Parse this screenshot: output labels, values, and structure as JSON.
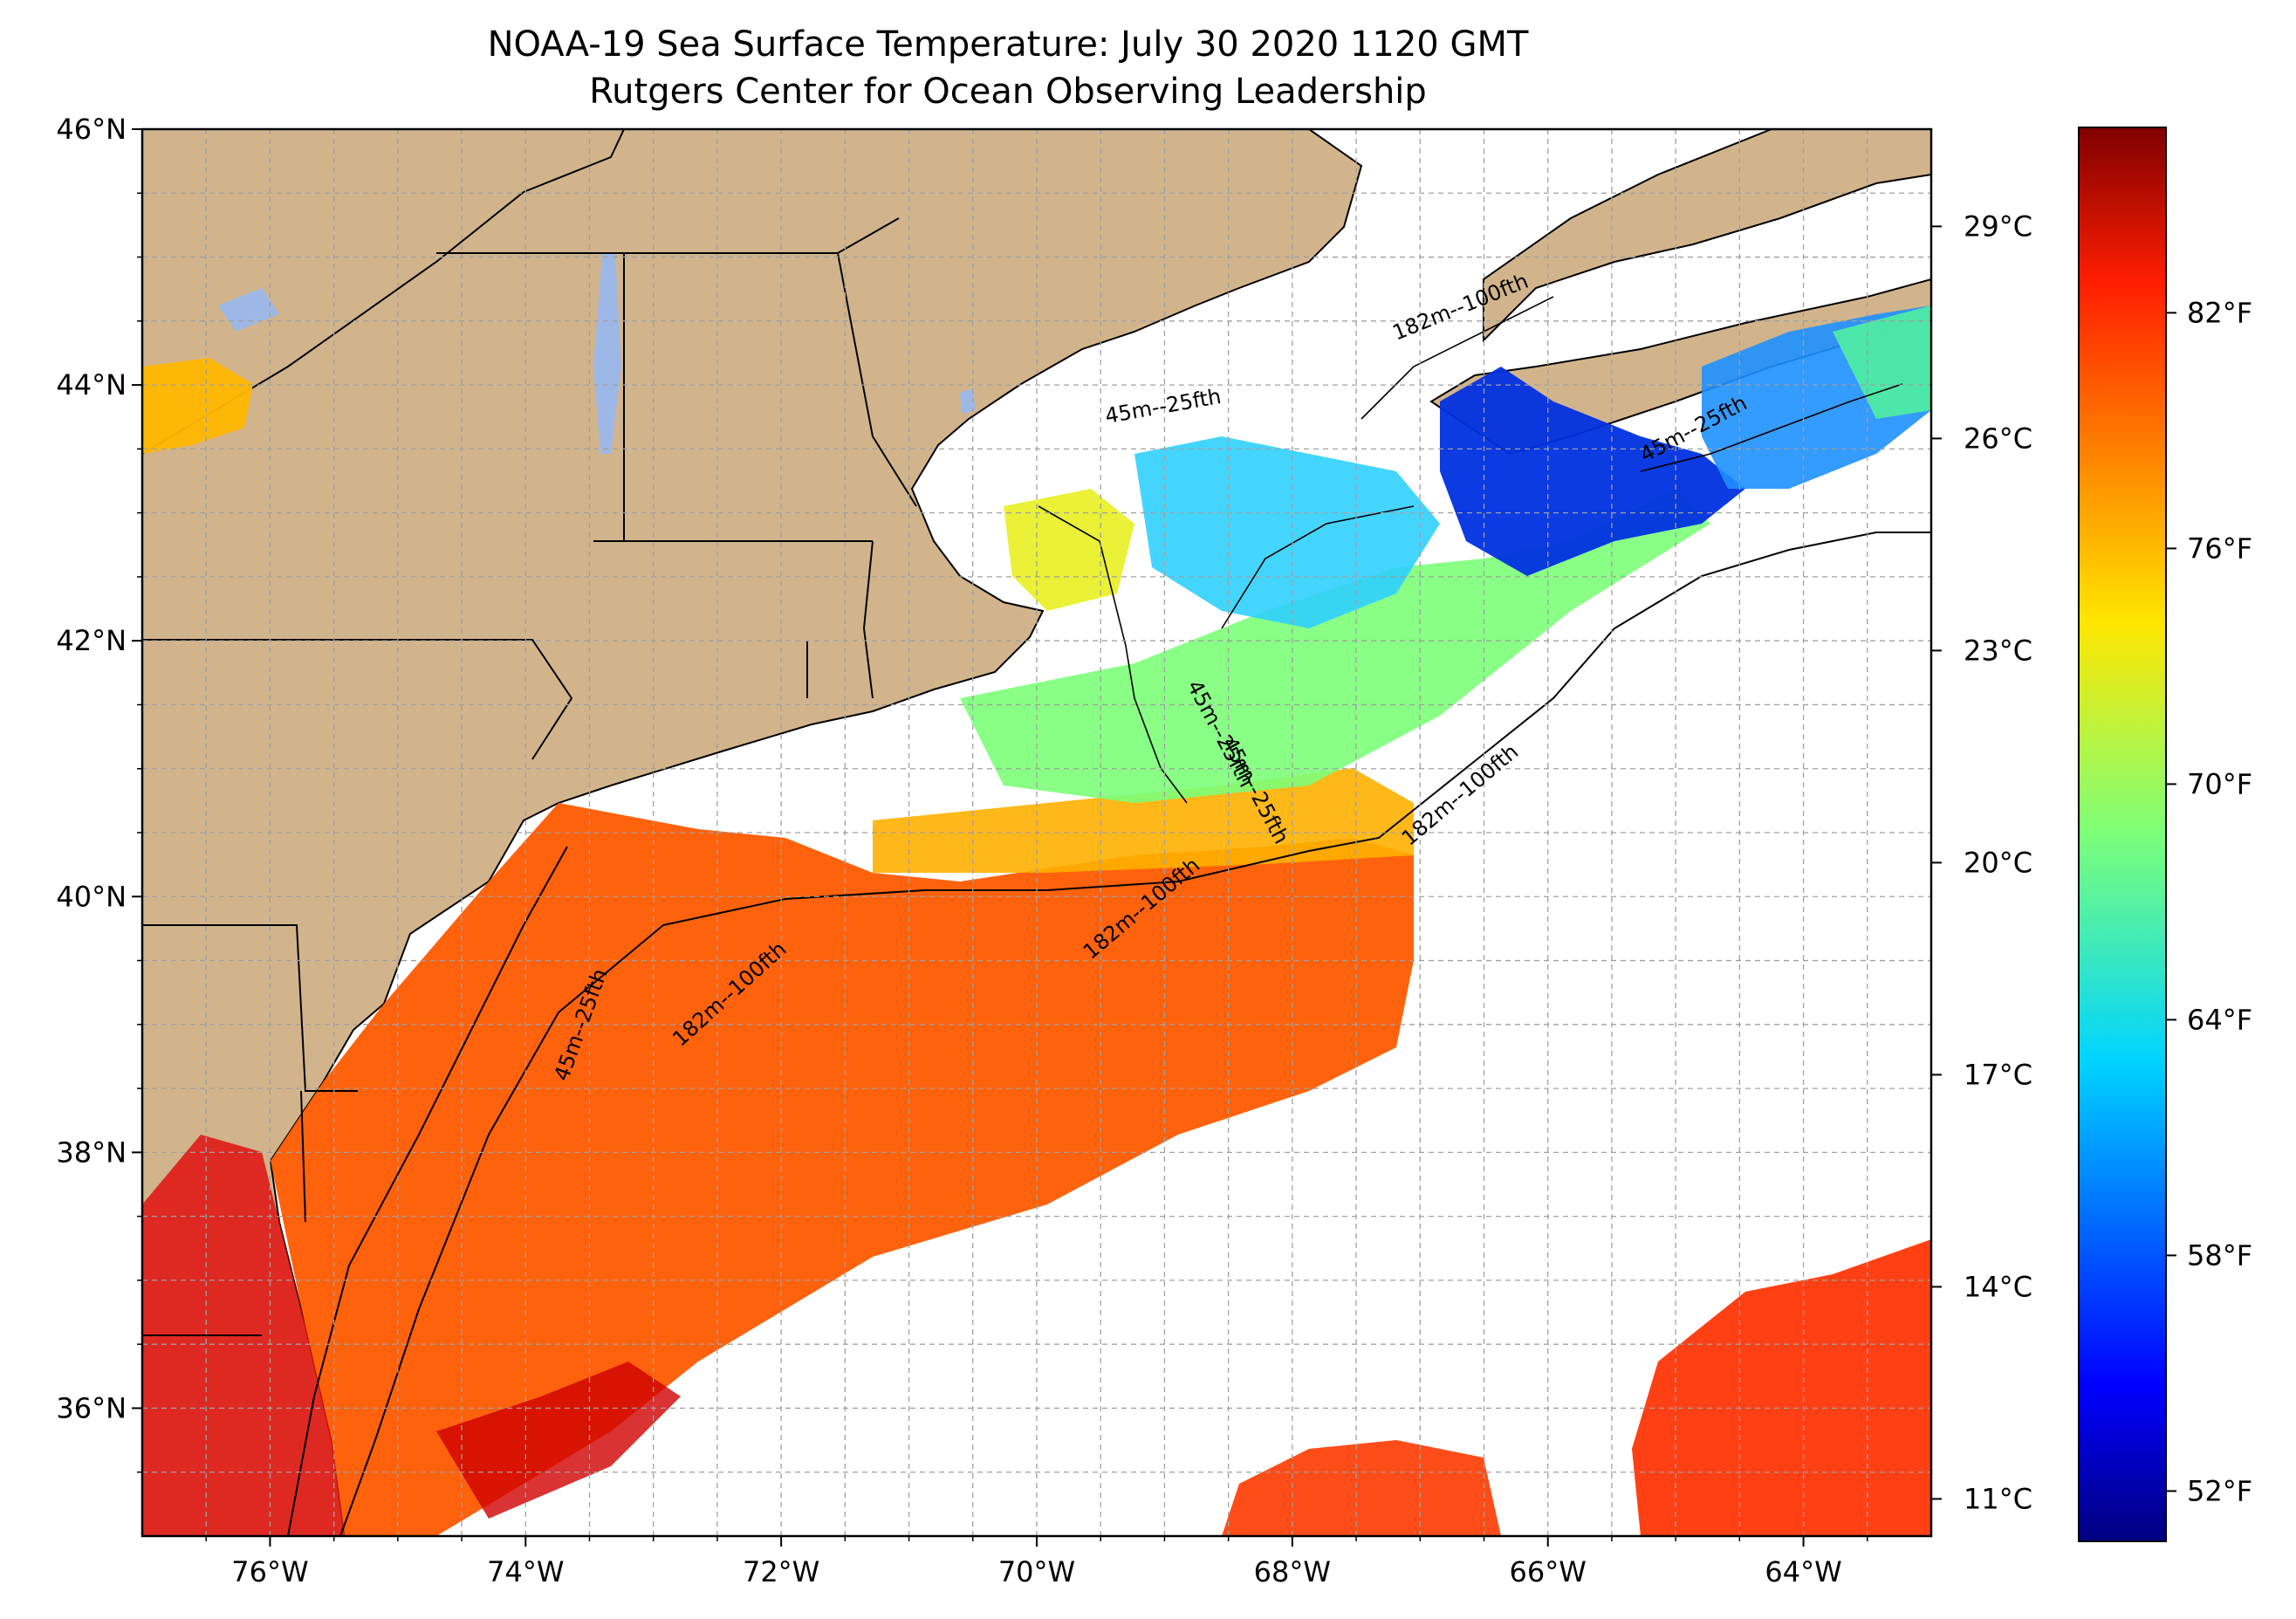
{
  "title": {
    "line1": "NOAA-19 Sea Surface Temperature: July 30 2020 1120 GMT",
    "line2": "Rutgers Center for Ocean Observing Leadership"
  },
  "map": {
    "lon_range": [
      -77,
      -63
    ],
    "lat_range": [
      35,
      46
    ],
    "lat_ticks": [
      "46°N",
      "44°N",
      "42°N",
      "40°N",
      "38°N",
      "36°N"
    ],
    "lon_ticks": [
      "76°W",
      "74°W",
      "72°W",
      "70°W",
      "68°W",
      "66°W",
      "64°W"
    ],
    "contour_labels": [
      "182m--100fth",
      "45m--25fth",
      "45m--25fth",
      "45m--25fth",
      "182m--100fth",
      "45m--25fth",
      "45m--25fth",
      "182m--100fth",
      "182m--100fth"
    ],
    "colors": {
      "land": "#D2B48C",
      "lakes": "#9DB8E6",
      "no_data": "#FFFFFF",
      "grid": "#A0A0A0"
    }
  },
  "colorbar": {
    "celsius_ticks": [
      "29°C",
      "26°C",
      "23°C",
      "20°C",
      "17°C",
      "14°C",
      "11°C"
    ],
    "fahrenheit_ticks": [
      "82°F",
      "76°F",
      "70°F",
      "64°F",
      "58°F",
      "52°F"
    ],
    "colormap": "jet",
    "celsius_values": [
      29,
      26,
      23,
      20,
      17,
      14,
      11
    ],
    "fahrenheit_values": [
      82,
      76,
      70,
      64,
      58,
      52
    ]
  }
}
